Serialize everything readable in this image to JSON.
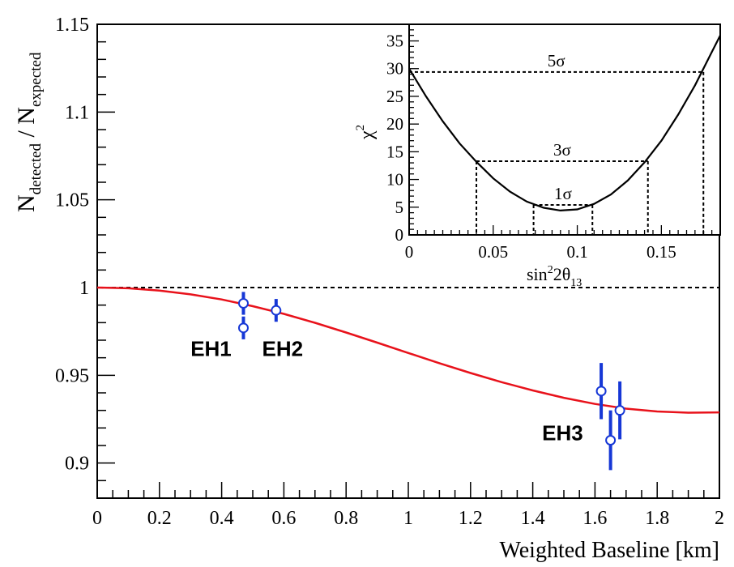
{
  "chart_data": [
    {
      "type": "scatter",
      "xlim": [
        0,
        2
      ],
      "ylim": [
        0.88,
        1.15
      ],
      "x_ticks": [
        "0",
        "0.2",
        "0.4",
        "0.6",
        "0.8",
        "1",
        "1.2",
        "1.4",
        "1.6",
        "1.8",
        "2"
      ],
      "x_tick_values": [
        0,
        0.2,
        0.4,
        0.6,
        0.8,
        1.0,
        1.2,
        1.4,
        1.6,
        1.8,
        2.0
      ],
      "y_ticks": [
        "0.9",
        "0.95",
        "1",
        "1.05",
        "1.1",
        "1.15"
      ],
      "y_tick_values": [
        0.9,
        0.95,
        1.0,
        1.05,
        1.1,
        1.15
      ],
      "xlabel": "Weighted Baseline [km]",
      "ylabel": {
        "n1": "N",
        "sub1": "detected",
        "sep": " / ",
        "n2": "N",
        "sub2": "expected"
      },
      "reference_line": {
        "y": 1.0,
        "style": "dashed",
        "color": "#000000"
      },
      "curve": {
        "color": "#e8121b",
        "x": [
          0,
          0.1,
          0.2,
          0.3,
          0.4,
          0.5,
          0.6,
          0.7,
          0.8,
          0.9,
          1.0,
          1.1,
          1.2,
          1.3,
          1.4,
          1.5,
          1.6,
          1.7,
          1.8,
          1.9,
          2.0
        ],
        "y": [
          1.0,
          0.9996,
          0.9983,
          0.9961,
          0.9932,
          0.9894,
          0.985,
          0.9799,
          0.9744,
          0.9686,
          0.9627,
          0.9569,
          0.9513,
          0.9461,
          0.9414,
          0.9372,
          0.9337,
          0.931,
          0.9294,
          0.9287,
          0.9289
        ]
      },
      "points": {
        "color": "#1637d6",
        "x": [
          0.47,
          0.47,
          0.575,
          1.62,
          1.65,
          1.68
        ],
        "y": [
          0.991,
          0.977,
          0.987,
          0.941,
          0.913,
          0.93
        ],
        "err": [
          0.0065,
          0.0065,
          0.0065,
          0.016,
          0.017,
          0.0165
        ]
      },
      "annotations": [
        {
          "text": "EH1",
          "x": 0.3,
          "y": 0.961
        },
        {
          "text": "EH2",
          "x": 0.53,
          "y": 0.961
        },
        {
          "text": "EH3",
          "x": 1.43,
          "y": 0.913
        }
      ]
    },
    {
      "type": "line",
      "xlim": [
        0,
        0.185
      ],
      "ylim": [
        0,
        38
      ],
      "x_ticks": [
        "0",
        "0.05",
        "0.1",
        "0.15"
      ],
      "x_tick_values": [
        0,
        0.05,
        0.1,
        0.15
      ],
      "y_ticks": [
        "0",
        "5",
        "10",
        "15",
        "20",
        "25",
        "30",
        "35"
      ],
      "y_tick_values": [
        0,
        5,
        10,
        15,
        20,
        25,
        30,
        35
      ],
      "xlabel": {
        "pre": "sin",
        "sup": "2",
        "mid": "2θ",
        "sub": "13"
      },
      "ylabel": {
        "base": "χ",
        "sup": "2"
      },
      "curve": {
        "color": "#000000",
        "x": [
          0,
          0.01,
          0.02,
          0.03,
          0.04,
          0.05,
          0.06,
          0.07,
          0.08,
          0.09,
          0.1,
          0.11,
          0.12,
          0.13,
          0.14,
          0.15,
          0.16,
          0.17,
          0.18,
          0.185
        ],
        "y": [
          30.0,
          25.0,
          20.5,
          16.5,
          13.2,
          10.2,
          7.8,
          6.0,
          4.9,
          4.4,
          4.6,
          5.6,
          7.3,
          9.8,
          13.1,
          17.0,
          21.7,
          27.0,
          33.0,
          36.0
        ]
      },
      "confidence_levels": [
        {
          "label": "1σ",
          "chi2": 5.4,
          "x_low": 0.074,
          "x_high": 0.109
        },
        {
          "label": "3σ",
          "chi2": 13.3,
          "x_low": 0.04,
          "x_high": 0.142
        },
        {
          "label": "5σ",
          "chi2": 29.4,
          "x_low": 0.0,
          "x_high": 0.175
        }
      ]
    }
  ]
}
